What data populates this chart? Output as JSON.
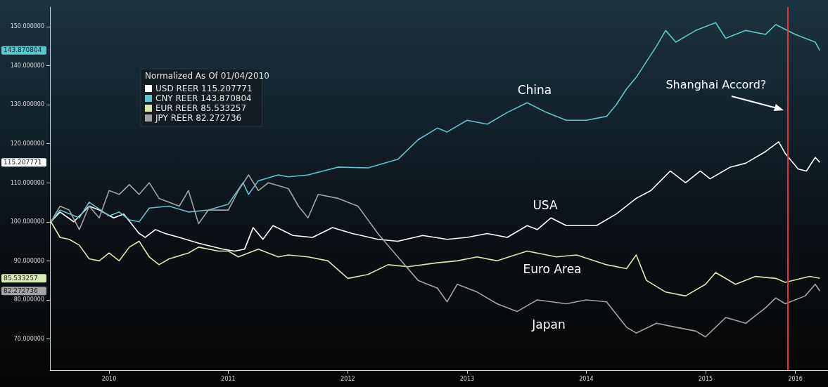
{
  "chart_data": {
    "type": "line",
    "legend_title": "Normalized As Of 01/04/2010",
    "legend": "top left",
    "grid": false,
    "marker": "none",
    "line_style": "solid",
    "xlim": [
      "2010-01-01",
      "2016-07-10"
    ],
    "xticks": [
      {
        "value": "2010-07-01",
        "label": "2010"
      },
      {
        "value": "2011-07-01",
        "label": "2011"
      },
      {
        "value": "2012-07-01",
        "label": "2012"
      },
      {
        "value": "2013-07-01",
        "label": "2013"
      },
      {
        "value": "2014-07-01",
        "label": "2014"
      },
      {
        "value": "2015-07-01",
        "label": "2015"
      },
      {
        "value": "2016-04-01",
        "label": "2016"
      }
    ],
    "ylim": [
      62,
      155
    ],
    "yticks": [
      {
        "value": 70,
        "label": "70.000000"
      },
      {
        "value": 80,
        "label": "80.000000"
      },
      {
        "value": 90,
        "label": "90.000000"
      },
      {
        "value": 100,
        "label": "100.000000"
      },
      {
        "value": 110,
        "label": "110.000000"
      },
      {
        "value": 120,
        "label": "120.000000"
      },
      {
        "value": 130,
        "label": "130.000000"
      },
      {
        "value": 140,
        "label": "140.000000"
      },
      {
        "value": 150,
        "label": "150.000000"
      }
    ],
    "series": [
      {
        "name": "USD REER 115.207771",
        "color": "#ffffff",
        "x": [
          "2010-01-04",
          "2010-02-01",
          "2010-03-15",
          "2010-05-01",
          "2010-06-01",
          "2010-07-15",
          "2010-08-15",
          "2010-10-01",
          "2010-10-20",
          "2010-11-20",
          "2010-12-20",
          "2011-02-01",
          "2011-04-01",
          "2011-06-15",
          "2011-07-20",
          "2011-08-20",
          "2011-09-15",
          "2011-10-15",
          "2011-11-15",
          "2012-01-15",
          "2012-03-15",
          "2012-05-15",
          "2012-07-15",
          "2012-10-01",
          "2012-12-01",
          "2013-02-15",
          "2013-05-01",
          "2013-07-01",
          "2013-09-01",
          "2013-11-01",
          "2014-01-01",
          "2014-02-01",
          "2014-03-15",
          "2014-05-01",
          "2014-08-01",
          "2014-10-01",
          "2014-12-01",
          "2015-01-15",
          "2015-03-15",
          "2015-05-01",
          "2015-06-15",
          "2015-07-15",
          "2015-09-15",
          "2015-11-01",
          "2016-01-01",
          "2016-02-10",
          "2016-03-01",
          "2016-04-10",
          "2016-05-05",
          "2016-06-01",
          "2016-06-15"
        ],
        "values": [
          100,
          102.5,
          100,
          104,
          103,
          101,
          102,
          97,
          96,
          98,
          97,
          96,
          94.5,
          93,
          92.5,
          93,
          98.5,
          95.5,
          99,
          96.5,
          96,
          98.5,
          97,
          95.5,
          95,
          96.5,
          95.5,
          96,
          97,
          96,
          99,
          98,
          101,
          99,
          99,
          102,
          106,
          108,
          113,
          110,
          113,
          111,
          114,
          115,
          118,
          120.5,
          117.5,
          113.5,
          113,
          116.5,
          115.207771
        ]
      },
      {
        "name": "CNY REER 143.870804",
        "color": "#5cc6cf",
        "x": [
          "2010-01-04",
          "2010-02-01",
          "2010-04-01",
          "2010-05-01",
          "2010-07-01",
          "2010-08-01",
          "2010-09-01",
          "2010-10-01",
          "2010-11-01",
          "2011-01-01",
          "2011-03-01",
          "2011-05-01",
          "2011-07-01",
          "2011-08-15",
          "2011-09-01",
          "2011-10-01",
          "2011-12-01",
          "2012-01-01",
          "2012-03-01",
          "2012-06-01",
          "2012-09-01",
          "2012-12-01",
          "2013-02-01",
          "2013-04-01",
          "2013-05-01",
          "2013-07-01",
          "2013-09-01",
          "2013-11-01",
          "2014-01-01",
          "2014-03-01",
          "2014-05-01",
          "2014-07-01",
          "2014-09-01",
          "2014-10-01",
          "2014-11-01",
          "2014-12-01",
          "2015-01-01",
          "2015-02-01",
          "2015-03-01",
          "2015-04-01",
          "2015-06-01",
          "2015-08-01",
          "2015-09-01",
          "2015-11-01",
          "2016-01-01",
          "2016-02-01",
          "2016-04-01",
          "2016-06-01",
          "2016-06-15"
        ],
        "values": [
          100,
          103,
          101,
          105,
          101.5,
          102.5,
          100.5,
          100,
          103.5,
          104,
          102.5,
          103,
          104.5,
          110,
          107,
          110.5,
          112,
          111.5,
          112,
          114,
          113.8,
          116,
          121,
          124,
          123,
          126,
          125,
          128,
          130.5,
          128,
          126,
          126,
          127,
          130,
          134,
          137,
          141,
          145,
          149,
          146,
          149,
          151,
          147,
          149,
          148,
          150.5,
          148,
          146,
          143.870804
        ]
      },
      {
        "name": "EUR REER 85.533257",
        "color": "#d6e9b2",
        "x": [
          "2010-01-04",
          "2010-02-01",
          "2010-03-01",
          "2010-04-01",
          "2010-05-01",
          "2010-06-01",
          "2010-07-01",
          "2010-08-01",
          "2010-09-01",
          "2010-10-01",
          "2010-11-01",
          "2010-12-01",
          "2011-01-01",
          "2011-03-01",
          "2011-04-01",
          "2011-06-01",
          "2011-07-01",
          "2011-08-01",
          "2011-10-01",
          "2011-12-01",
          "2012-01-01",
          "2012-03-01",
          "2012-05-01",
          "2012-07-01",
          "2012-09-01",
          "2012-11-01",
          "2013-01-01",
          "2013-04-01",
          "2013-06-01",
          "2013-08-01",
          "2013-10-01",
          "2014-01-01",
          "2014-04-01",
          "2014-06-01",
          "2014-09-01",
          "2014-11-01",
          "2014-12-01",
          "2015-01-01",
          "2015-03-01",
          "2015-05-01",
          "2015-07-01",
          "2015-08-01",
          "2015-10-01",
          "2015-12-01",
          "2016-02-01",
          "2016-03-01",
          "2016-05-15",
          "2016-06-15"
        ],
        "values": [
          100,
          96,
          95.5,
          94,
          90.5,
          90,
          92,
          90,
          93.5,
          95,
          91,
          89,
          90.5,
          92,
          93.5,
          92.5,
          92.5,
          91,
          93,
          91,
          91.5,
          91,
          90,
          85.5,
          86.5,
          89,
          88.5,
          89.5,
          90,
          91,
          90,
          92.5,
          91,
          91.5,
          89,
          88,
          91.5,
          85,
          82,
          81,
          84,
          87,
          84,
          86,
          85.5,
          84.5,
          86,
          85.533257
        ]
      },
      {
        "name": "JPY REER 82.272736",
        "color": "#a3a3a3",
        "x": [
          "2010-01-04",
          "2010-02-01",
          "2010-03-01",
          "2010-04-01",
          "2010-05-01",
          "2010-06-01",
          "2010-07-01",
          "2010-08-01",
          "2010-09-01",
          "2010-10-01",
          "2010-11-01",
          "2010-12-01",
          "2011-02-01",
          "2011-03-01",
          "2011-04-01",
          "2011-05-01",
          "2011-07-01",
          "2011-08-01",
          "2011-09-01",
          "2011-10-01",
          "2011-11-01",
          "2012-01-01",
          "2012-02-01",
          "2012-03-01",
          "2012-04-01",
          "2012-06-01",
          "2012-08-01",
          "2012-10-01",
          "2012-12-01",
          "2013-02-01",
          "2013-04-01",
          "2013-05-01",
          "2013-06-01",
          "2013-08-01",
          "2013-10-01",
          "2013-12-01",
          "2014-02-01",
          "2014-05-01",
          "2014-07-01",
          "2014-09-01",
          "2014-11-01",
          "2014-12-01",
          "2015-02-01",
          "2015-04-01",
          "2015-06-01",
          "2015-07-01",
          "2015-09-01",
          "2015-11-01",
          "2016-01-01",
          "2016-02-01",
          "2016-03-01",
          "2016-05-01",
          "2016-06-01",
          "2016-06-15"
        ],
        "values": [
          100,
          104,
          103,
          98,
          104,
          101,
          108,
          107,
          109.5,
          107,
          110,
          106,
          104,
          108,
          99.5,
          103,
          103,
          108,
          112,
          108,
          110,
          108.5,
          104,
          101,
          107,
          106,
          104,
          97,
          91,
          85,
          83,
          79.5,
          84,
          82,
          79,
          77,
          80,
          79,
          80,
          79.5,
          73,
          71.5,
          74,
          73,
          72,
          70.5,
          75.5,
          74,
          78,
          80.5,
          79,
          81,
          84,
          82.272736
        ]
      }
    ],
    "ref_lines": [
      {
        "axis": "x",
        "value": "2016-03-09",
        "label": "Shanghai Accord?",
        "color": "#e8313f"
      }
    ],
    "annotations": [
      "China",
      "USA",
      "Euro Area",
      "Japan",
      "115.207771",
      "143.870804",
      "85.533257",
      "82.272736"
    ]
  }
}
